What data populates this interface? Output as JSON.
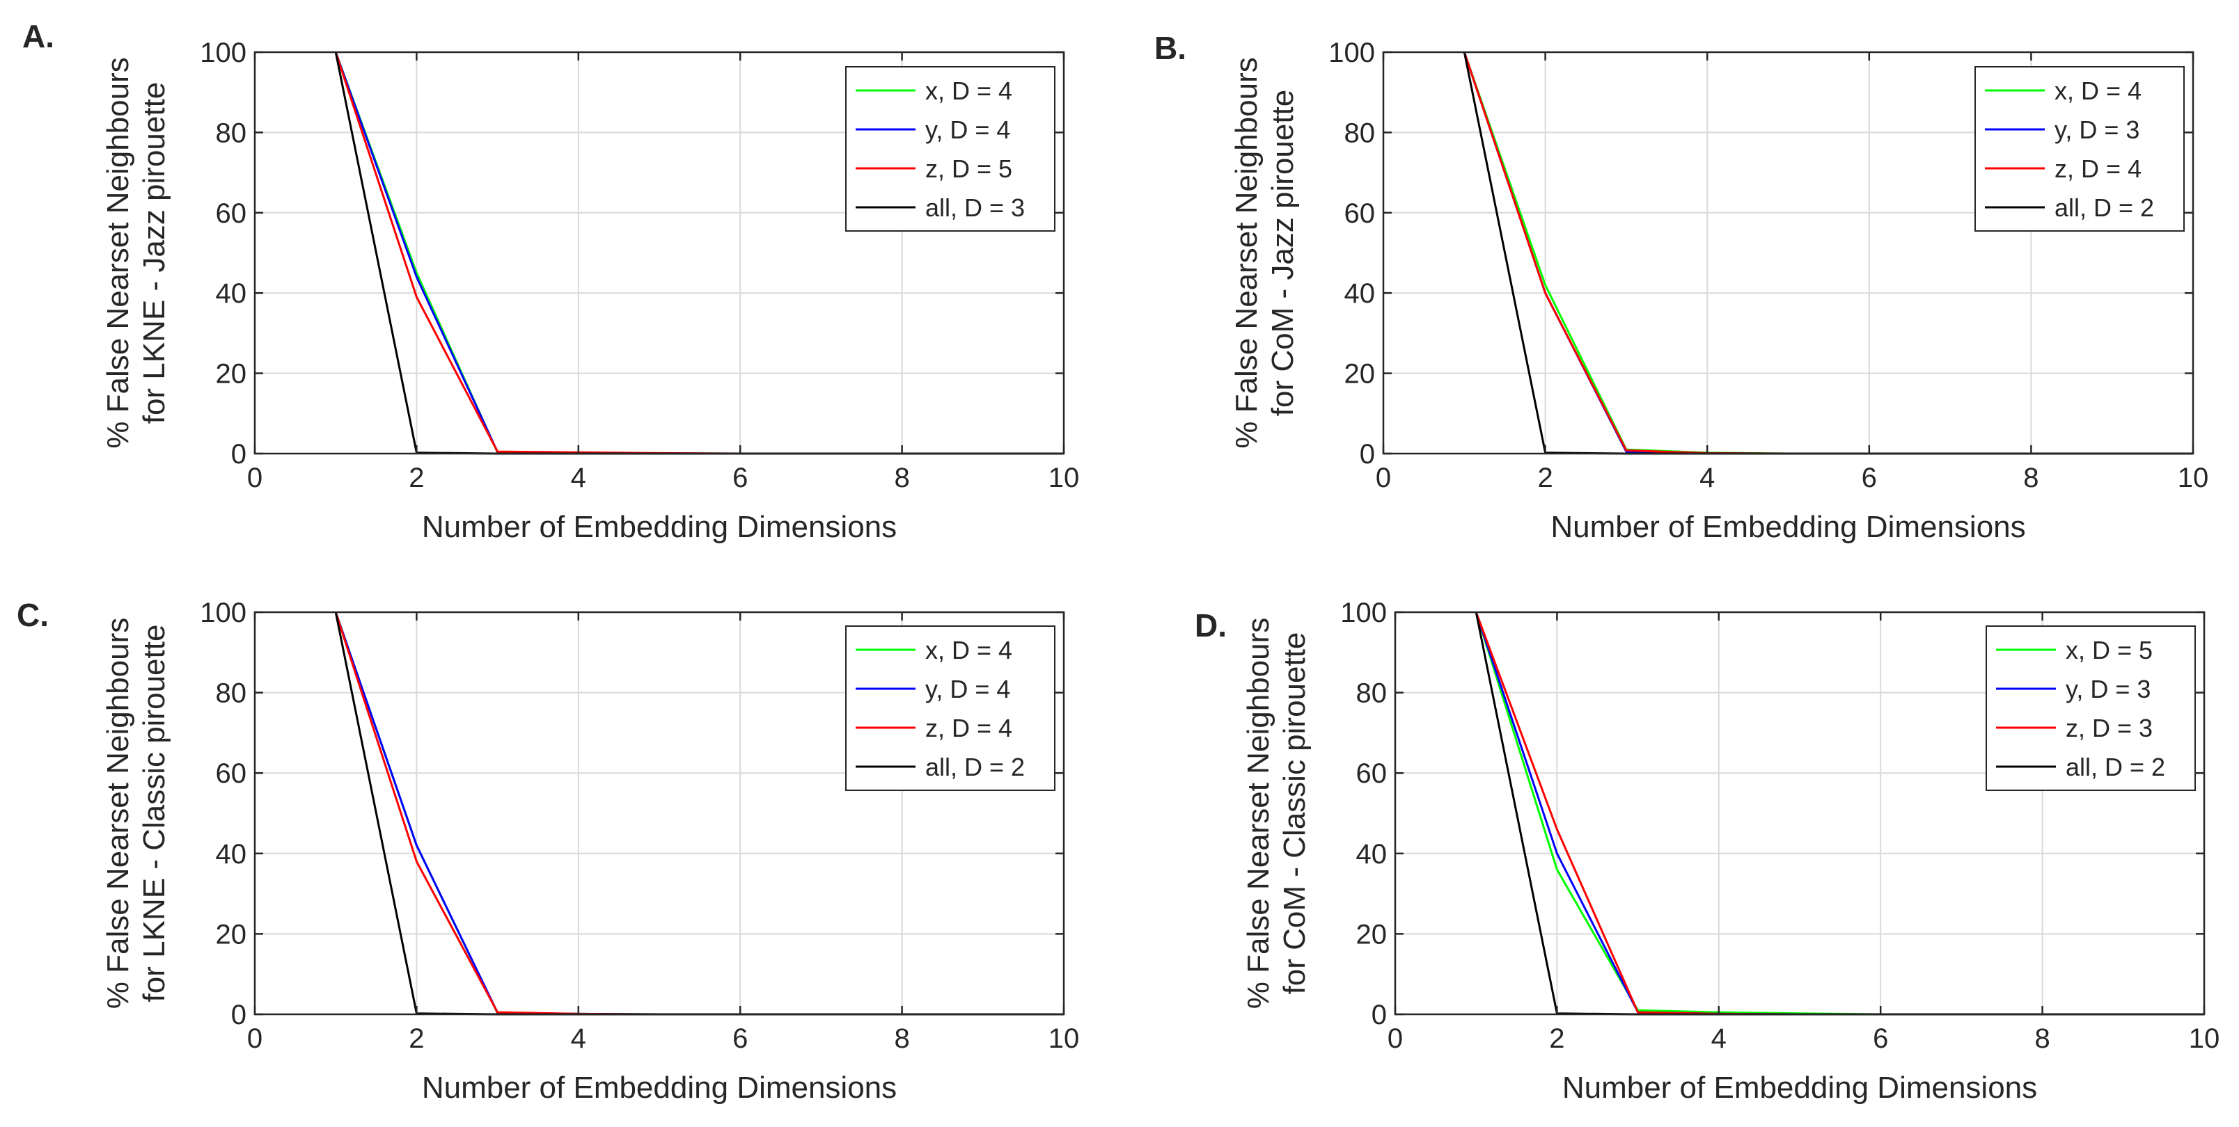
{
  "colors": {
    "x": "#00ff00",
    "y": "#0000ff",
    "z": "#ff0000",
    "all": "#000000",
    "grid": "#d9d9d9",
    "axis": "#262626"
  },
  "chart_data": [
    {
      "panel": "A.",
      "type": "line",
      "xlabel": "Number of Embedding Dimensions",
      "ylabel": [
        "% False Nearset Neighbours",
        "for LKNE - Jazz pirouette"
      ],
      "xlim": [
        0,
        10
      ],
      "ylim": [
        0,
        100
      ],
      "xticks": [
        0,
        2,
        4,
        6,
        8,
        10
      ],
      "yticks": [
        0,
        20,
        40,
        60,
        80,
        100
      ],
      "grid": true,
      "legend_position": "top-right",
      "x": [
        1,
        2,
        3,
        4,
        5,
        6,
        7,
        8,
        9,
        10
      ],
      "series": [
        {
          "name": "x, D = 4",
          "color_key": "x",
          "values": [
            100,
            45,
            0.3,
            0.2,
            0,
            0,
            0,
            0,
            0,
            0
          ]
        },
        {
          "name": "y, D = 4",
          "color_key": "y",
          "values": [
            100,
            44,
            0.4,
            0.2,
            0,
            0,
            0,
            0,
            0,
            0
          ]
        },
        {
          "name": "z, D = 5",
          "color_key": "z",
          "values": [
            100,
            39,
            0.5,
            0.3,
            0.1,
            0,
            0,
            0,
            0,
            0
          ]
        },
        {
          "name": "all, D = 3",
          "color_key": "all",
          "values": [
            100,
            0.2,
            0,
            0,
            0,
            0,
            0,
            0,
            0,
            0
          ]
        }
      ]
    },
    {
      "panel": "B.",
      "type": "line",
      "xlabel": "Number of Embedding Dimensions",
      "ylabel": [
        "% False Nearset Neighbours",
        "for CoM - Jazz pirouette"
      ],
      "xlim": [
        0,
        10
      ],
      "ylim": [
        0,
        100
      ],
      "xticks": [
        0,
        2,
        4,
        6,
        8,
        10
      ],
      "yticks": [
        0,
        20,
        40,
        60,
        80,
        100
      ],
      "grid": true,
      "legend_position": "top-right",
      "x": [
        1,
        2,
        3,
        4,
        5,
        6,
        7,
        8,
        9,
        10
      ],
      "series": [
        {
          "name": "x, D = 4",
          "color_key": "x",
          "values": [
            100,
            42,
            1,
            0.2,
            0,
            0,
            0,
            0,
            0,
            0
          ]
        },
        {
          "name": "y, D = 3",
          "color_key": "y",
          "values": [
            100,
            40,
            0.5,
            0,
            0,
            0,
            0,
            0,
            0,
            0
          ]
        },
        {
          "name": "z, D = 4",
          "color_key": "z",
          "values": [
            100,
            40,
            0.8,
            0.1,
            0,
            0,
            0,
            0,
            0,
            0
          ]
        },
        {
          "name": "all, D = 2",
          "color_key": "all",
          "values": [
            100,
            0.2,
            0,
            0,
            0,
            0,
            0,
            0,
            0,
            0
          ]
        }
      ]
    },
    {
      "panel": "C.",
      "type": "line",
      "xlabel": "Number of Embedding Dimensions",
      "ylabel": [
        "% False Nearset Neighbours",
        "for LKNE - Classic pirouette"
      ],
      "xlim": [
        0,
        10
      ],
      "ylim": [
        0,
        100
      ],
      "xticks": [
        0,
        2,
        4,
        6,
        8,
        10
      ],
      "yticks": [
        0,
        20,
        40,
        60,
        80,
        100
      ],
      "grid": true,
      "legend_position": "top-right",
      "x": [
        1,
        2,
        3,
        4,
        5,
        6,
        7,
        8,
        9,
        10
      ],
      "series": [
        {
          "name": "x, D = 4",
          "color_key": "x",
          "values": [
            100,
            42,
            0.3,
            0.1,
            0,
            0,
            0,
            0,
            0,
            0
          ]
        },
        {
          "name": "y, D = 4",
          "color_key": "y",
          "values": [
            100,
            42,
            0.4,
            0.1,
            0,
            0,
            0,
            0,
            0,
            0
          ]
        },
        {
          "name": "z, D = 4",
          "color_key": "z",
          "values": [
            100,
            38,
            0.5,
            0.1,
            0,
            0,
            0,
            0,
            0,
            0
          ]
        },
        {
          "name": "all, D = 2",
          "color_key": "all",
          "values": [
            100,
            0.2,
            0,
            0,
            0,
            0,
            0,
            0,
            0,
            0
          ]
        }
      ]
    },
    {
      "panel": "D.",
      "type": "line",
      "xlabel": "Number of Embedding Dimensions",
      "ylabel": [
        "% False Nearset Neighbours",
        "for CoM - Classic pirouette"
      ],
      "xlim": [
        0,
        10
      ],
      "ylim": [
        0,
        100
      ],
      "xticks": [
        0,
        2,
        4,
        6,
        8,
        10
      ],
      "yticks": [
        0,
        20,
        40,
        60,
        80,
        100
      ],
      "grid": true,
      "legend_position": "top-right",
      "x": [
        1,
        2,
        3,
        4,
        5,
        6,
        7,
        8,
        9,
        10
      ],
      "series": [
        {
          "name": "x, D = 5",
          "color_key": "x",
          "values": [
            100,
            36,
            1,
            0.5,
            0.2,
            0,
            0,
            0,
            0,
            0
          ]
        },
        {
          "name": "y, D = 3",
          "color_key": "y",
          "values": [
            100,
            40,
            0.5,
            0.1,
            0,
            0,
            0,
            0,
            0,
            0
          ]
        },
        {
          "name": "z, D = 3",
          "color_key": "z",
          "values": [
            100,
            46,
            0.5,
            0.1,
            0,
            0,
            0,
            0,
            0,
            0
          ]
        },
        {
          "name": "all, D = 2",
          "color_key": "all",
          "values": [
            100,
            0.2,
            0,
            0,
            0,
            0,
            0,
            0,
            0,
            0
          ]
        }
      ]
    }
  ]
}
